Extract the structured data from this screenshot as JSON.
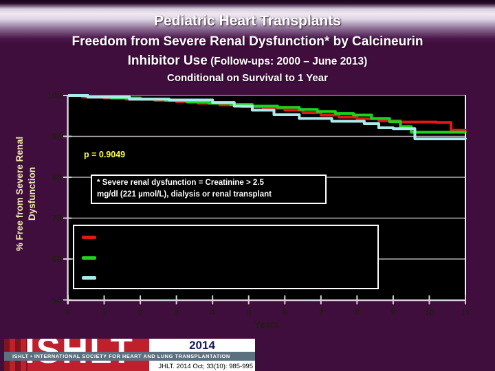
{
  "slide": {
    "background_color": "#3f0e3d",
    "title_line1": "Pediatric Heart Transplants",
    "title_line2": "Freedom from Severe Renal Dysfunction* by Calcineurin",
    "title_line3_main": "Inhibitor Use",
    "title_line3_paren": " (Follow-ups: 2000 – June 2013)",
    "title_line4": "Conditional on Survival to 1 Year"
  },
  "chart_data": {
    "type": "line",
    "subtype": "kaplan-meier-step",
    "title": "",
    "xlabel": "Years",
    "ylabel_line1": "% Free from Severe Renal",
    "ylabel_line2": "Dysfunction",
    "xlim": [
      0,
      11
    ],
    "ylim": [
      50,
      100
    ],
    "x_ticks": [
      0,
      1,
      2,
      3,
      4,
      5,
      6,
      7,
      8,
      9,
      10,
      11
    ],
    "y_ticks": [
      100,
      90,
      80,
      70,
      60,
      50
    ],
    "grid": "horizontal",
    "gridline_values": [
      90,
      80,
      70,
      60
    ],
    "p_value": "p = 0.9049",
    "annotation_line1": "* Severe renal dysfunction = Creatinine > 2.5",
    "annotation_line2": "mg/dl (221 µmol/L), dialysis or renal transplant",
    "colors": {
      "plot_background": "#000000",
      "gridline": "#b6afb6",
      "axis": "#d9d3d9",
      "plot_top_border": "#93899a",
      "plot_right_border": "#f2f2f2",
      "tick_label": "#221e12",
      "p_value_text": "#ffff3c",
      "ylabel_text": "#eee9ad"
    },
    "legend": {
      "position": "lower-left",
      "entries": [
        {
          "label": "",
          "color": "#e21717"
        },
        {
          "label": "",
          "color": "#1bd41b"
        },
        {
          "label": "",
          "color": "#a9ecec"
        }
      ]
    },
    "series": [
      {
        "name": "red-line",
        "color": "#e21717",
        "points": [
          [
            0,
            100
          ],
          [
            0.4,
            99.6
          ],
          [
            1.0,
            99.4
          ],
          [
            1.6,
            99.1
          ],
          [
            2.4,
            98.8
          ],
          [
            3.0,
            98.5
          ],
          [
            3.6,
            98.1
          ],
          [
            4.2,
            97.7
          ],
          [
            4.8,
            97.3
          ],
          [
            5.4,
            96.9
          ],
          [
            6.0,
            96.4
          ],
          [
            6.5,
            95.8
          ],
          [
            7.0,
            95.2
          ],
          [
            7.5,
            94.7
          ],
          [
            8.0,
            94.3
          ],
          [
            8.6,
            93.8
          ],
          [
            9.2,
            93.5
          ],
          [
            10.2,
            93.4
          ],
          [
            10.6,
            91.5
          ],
          [
            11,
            91.4
          ]
        ]
      },
      {
        "name": "green-line",
        "color": "#1bd41b",
        "points": [
          [
            0,
            100
          ],
          [
            0.5,
            99.7
          ],
          [
            1.2,
            99.4
          ],
          [
            2.0,
            99.1
          ],
          [
            2.7,
            98.8
          ],
          [
            3.3,
            98.4
          ],
          [
            3.9,
            98.1
          ],
          [
            4.5,
            97.8
          ],
          [
            5.1,
            97.4
          ],
          [
            5.8,
            97.1
          ],
          [
            6.4,
            96.6
          ],
          [
            6.9,
            96.1
          ],
          [
            7.4,
            95.6
          ],
          [
            7.9,
            95.2
          ],
          [
            8.4,
            94.4
          ],
          [
            8.9,
            93.6
          ],
          [
            9.2,
            92.4
          ],
          [
            9.5,
            91.0
          ],
          [
            11,
            90.9
          ]
        ]
      },
      {
        "name": "cyan-line",
        "color": "#a9ecec",
        "points": [
          [
            0,
            100
          ],
          [
            0.55,
            99.6
          ],
          [
            1.7,
            99.1
          ],
          [
            2.8,
            98.9
          ],
          [
            4.0,
            98.3
          ],
          [
            4.6,
            97.4
          ],
          [
            5.1,
            96.4
          ],
          [
            5.7,
            95.3
          ],
          [
            6.4,
            94.4
          ],
          [
            7.3,
            93.7
          ],
          [
            8.2,
            93.1
          ],
          [
            8.6,
            92.1
          ],
          [
            9.0,
            91.9
          ],
          [
            9.6,
            89.4
          ],
          [
            11,
            89.3
          ]
        ]
      }
    ]
  },
  "footer": {
    "logo_word": "ISHLT",
    "strip_text": "ISHLT • INTERNATIONAL SOCIETY FOR HEART AND LUNG TRANSPLANTATION",
    "year": "2014",
    "citation": "JHLT. 2014 Oct; 33(10): 985-995",
    "banner_color": "#c0202c",
    "strip_color": "#5d7080",
    "year_color": "#1c1c66"
  }
}
